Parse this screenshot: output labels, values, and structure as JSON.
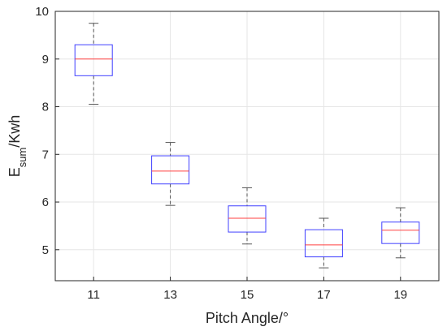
{
  "chart_data": {
    "type": "box",
    "xlabel": "Pitch Angle/°",
    "ylabel": {
      "base": "E",
      "sub": "sum",
      "rest": "/Kwh"
    },
    "categories": [
      "11",
      "13",
      "15",
      "17",
      "19"
    ],
    "ylim": [
      4.35,
      10
    ],
    "yticks": [
      5,
      6,
      7,
      8,
      9,
      10
    ],
    "grid": true,
    "box_color": "#4040ff",
    "median_color": "#ff4040",
    "whisker_color": "#555555",
    "boxes": [
      {
        "category": "11",
        "min": 8.05,
        "q1": 8.65,
        "median": 9.0,
        "q3": 9.3,
        "max": 9.75
      },
      {
        "category": "13",
        "min": 5.93,
        "q1": 6.38,
        "median": 6.65,
        "q3": 6.97,
        "max": 7.25
      },
      {
        "category": "15",
        "min": 5.12,
        "q1": 5.37,
        "median": 5.66,
        "q3": 5.92,
        "max": 6.3
      },
      {
        "category": "17",
        "min": 4.62,
        "q1": 4.85,
        "median": 5.1,
        "q3": 5.42,
        "max": 5.66
      },
      {
        "category": "19",
        "min": 4.83,
        "q1": 5.13,
        "median": 5.41,
        "q3": 5.58,
        "max": 5.88
      }
    ]
  }
}
